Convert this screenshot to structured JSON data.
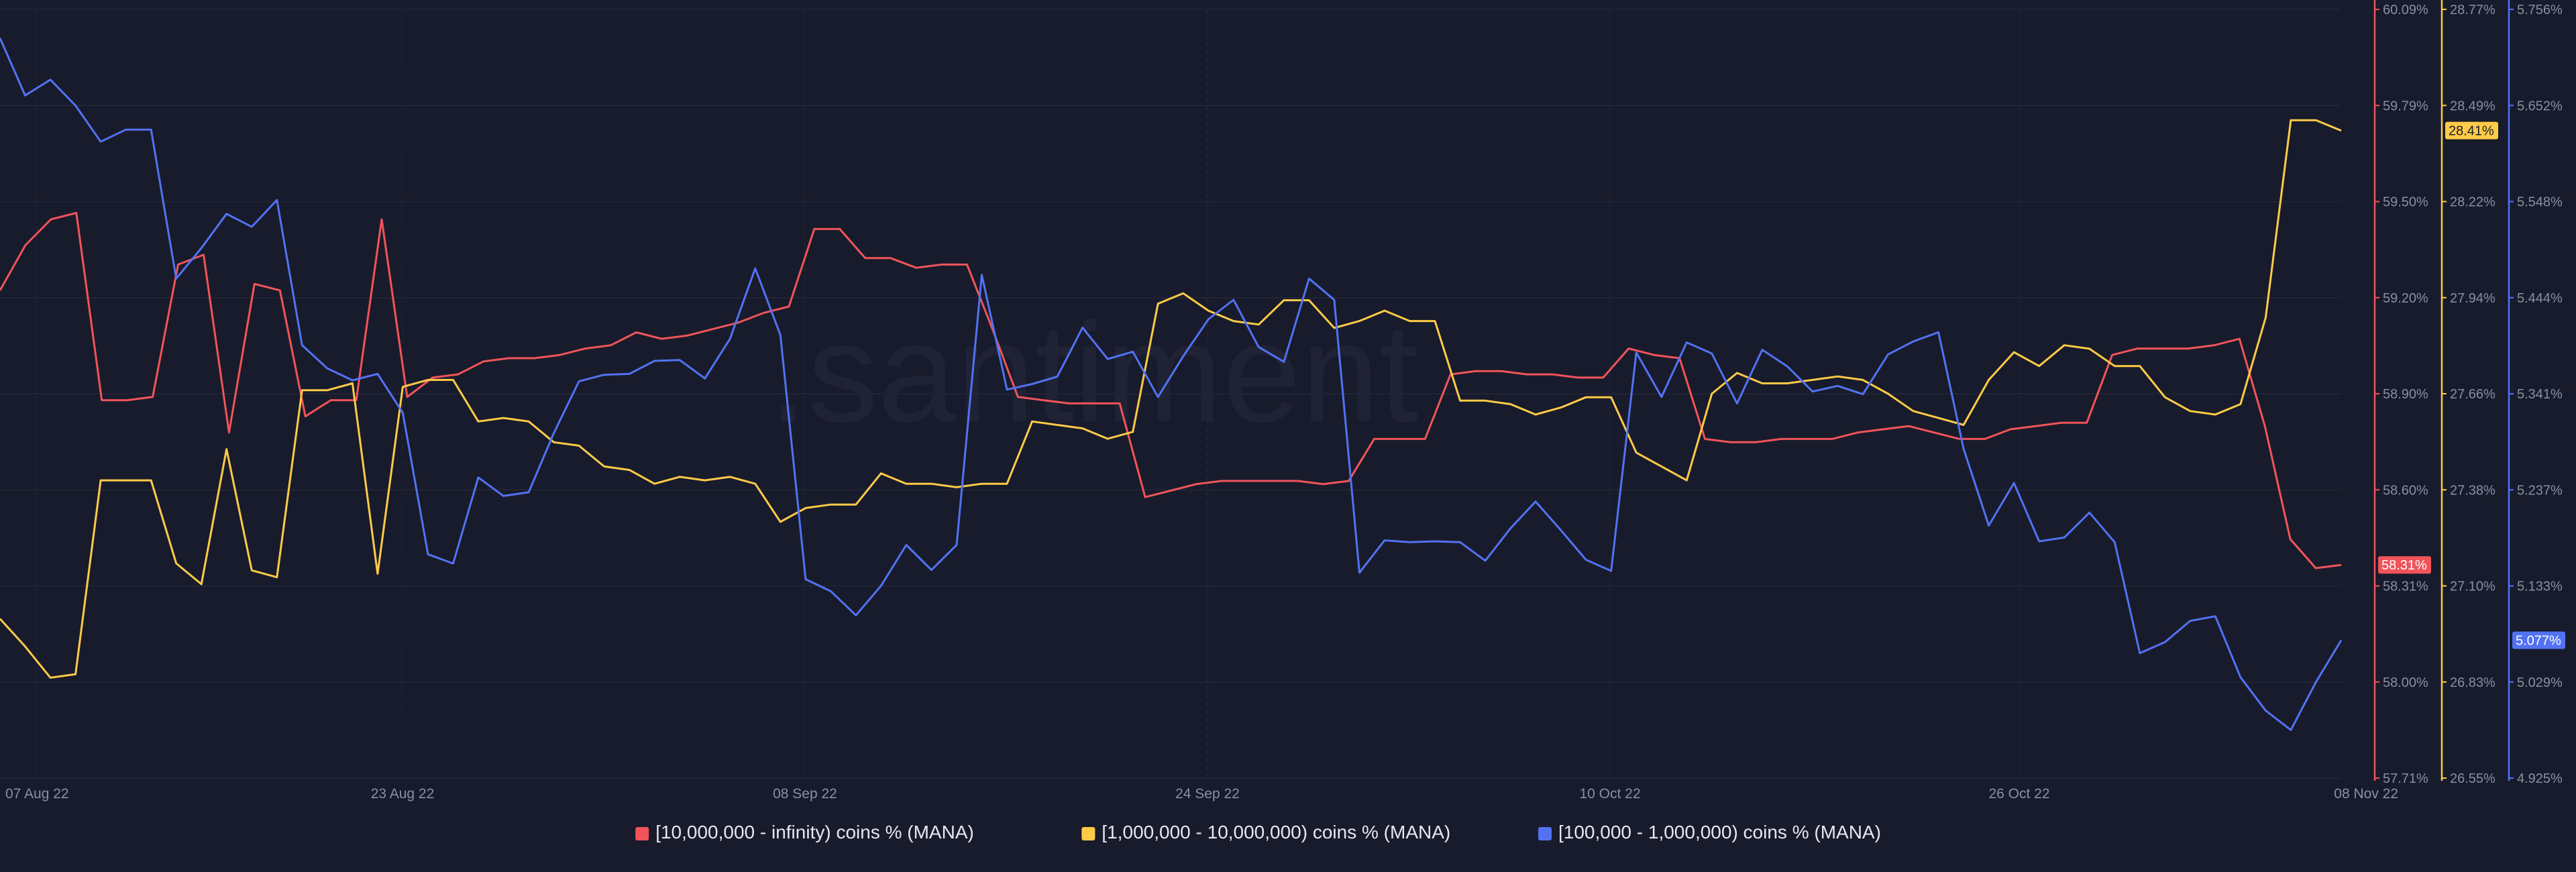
{
  "watermark": ".santiment",
  "colors": {
    "background": "#181b2b",
    "grid": "#232738",
    "axis_text": "#8a8fa3",
    "red": "#f0545a",
    "yellow": "#ffcb47",
    "blue": "#5272f3"
  },
  "chart_data": {
    "type": "line",
    "x_tick_labels": [
      "07 Aug 22",
      "23 Aug 22",
      "08 Sep 22",
      "24 Sep 22",
      "10 Oct 22",
      "26 Oct 22",
      "08 Nov 22"
    ],
    "legend_position": "bottom-center",
    "grid": true,
    "axes": {
      "red": {
        "range": [
          57.71,
          60.09
        ],
        "ticks": [
          "60.09%",
          "59.79%",
          "59.50%",
          "59.20%",
          "58.90%",
          "58.60%",
          "58.31%",
          "58.00%",
          "57.71%"
        ],
        "current_value_label": "58.31%"
      },
      "yellow": {
        "range": [
          26.55,
          28.77
        ],
        "ticks": [
          "28.77%",
          "28.49%",
          "28.22%",
          "27.94%",
          "27.66%",
          "27.38%",
          "27.10%",
          "26.83%",
          "26.55%"
        ],
        "current_value_label": "28.41%"
      },
      "blue": {
        "range": [
          4.925,
          5.756
        ],
        "ticks": [
          "5.756%",
          "5.652%",
          "5.548%",
          "5.444%",
          "5.341%",
          "5.237%",
          "5.133%",
          "5.029%",
          "4.925%"
        ],
        "current_value_label": "5.077%"
      }
    },
    "series": [
      {
        "name": "[10,000,000 - infinity) coins % (MANA)",
        "axis": "red",
        "color": "#f0545a",
        "values": [
          59.22,
          59.36,
          59.44,
          59.46,
          58.88,
          58.88,
          58.89,
          59.3,
          59.33,
          58.78,
          59.24,
          59.22,
          58.83,
          58.88,
          58.88,
          59.44,
          58.89,
          58.95,
          58.96,
          59.0,
          59.01,
          59.01,
          59.02,
          59.04,
          59.05,
          59.09,
          59.07,
          59.08,
          59.1,
          59.12,
          59.15,
          59.17,
          59.41,
          59.41,
          59.32,
          59.32,
          59.29,
          59.3,
          59.3,
          59.1,
          58.89,
          58.88,
          58.87,
          58.87,
          58.87,
          58.58,
          58.6,
          58.62,
          58.63,
          58.63,
          58.63,
          58.63,
          58.62,
          58.63,
          58.76,
          58.76,
          58.76,
          58.96,
          58.97,
          58.97,
          58.96,
          58.96,
          58.95,
          58.95,
          59.04,
          59.02,
          59.01,
          58.76,
          58.75,
          58.75,
          58.76,
          58.76,
          58.76,
          58.78,
          58.79,
          58.8,
          58.78,
          58.76,
          58.76,
          58.79,
          58.8,
          58.81,
          58.81,
          59.02,
          59.04,
          59.04,
          59.04,
          59.05,
          59.07,
          58.8,
          58.45,
          58.36,
          58.37
        ]
      },
      {
        "name": "[1,000,000 - 10,000,000) coins % (MANA)",
        "axis": "yellow",
        "color": "#ffcb47",
        "values": [
          27.01,
          26.93,
          26.84,
          26.85,
          27.41,
          27.41,
          27.41,
          27.17,
          27.11,
          27.5,
          27.15,
          27.13,
          27.67,
          27.67,
          27.69,
          27.14,
          27.68,
          27.7,
          27.7,
          27.58,
          27.59,
          27.58,
          27.52,
          27.51,
          27.45,
          27.44,
          27.4,
          27.42,
          27.41,
          27.42,
          27.4,
          27.29,
          27.33,
          27.34,
          27.34,
          27.43,
          27.4,
          27.4,
          27.39,
          27.4,
          27.4,
          27.58,
          27.57,
          27.56,
          27.53,
          27.55,
          27.92,
          27.95,
          27.9,
          27.87,
          27.86,
          27.93,
          27.93,
          27.85,
          27.87,
          27.9,
          27.87,
          27.87,
          27.64,
          27.64,
          27.63,
          27.6,
          27.62,
          27.65,
          27.65,
          27.49,
          27.45,
          27.41,
          27.66,
          27.72,
          27.69,
          27.69,
          27.7,
          27.71,
          27.7,
          27.66,
          27.61,
          27.59,
          27.57,
          27.7,
          27.78,
          27.74,
          27.8,
          27.79,
          27.74,
          27.74,
          27.65,
          27.61,
          27.6,
          27.63,
          27.88,
          28.45,
          28.45,
          28.42
        ]
      },
      {
        "name": "[100,000  - 1,000,000) coins % (MANA)",
        "axis": "blue",
        "color": "#5272f3",
        "values": [
          5.725,
          5.663,
          5.68,
          5.652,
          5.613,
          5.626,
          5.626,
          5.465,
          5.498,
          5.535,
          5.521,
          5.55,
          5.393,
          5.368,
          5.355,
          5.362,
          5.32,
          5.167,
          5.157,
          5.25,
          5.23,
          5.234,
          5.298,
          5.354,
          5.361,
          5.362,
          5.376,
          5.377,
          5.357,
          5.4,
          5.476,
          5.404,
          5.14,
          5.127,
          5.101,
          5.133,
          5.177,
          5.15,
          5.177,
          5.469,
          5.345,
          5.351,
          5.359,
          5.412,
          5.378,
          5.386,
          5.337,
          5.381,
          5.421,
          5.442,
          5.391,
          5.375,
          5.465,
          5.442,
          5.147,
          5.182,
          5.18,
          5.181,
          5.18,
          5.16,
          5.195,
          5.224,
          5.193,
          5.161,
          5.149,
          5.385,
          5.337,
          5.396,
          5.384,
          5.33,
          5.388,
          5.37,
          5.343,
          5.349,
          5.34,
          5.383,
          5.397,
          5.407,
          5.281,
          5.198,
          5.244,
          5.181,
          5.185,
          5.212,
          5.18,
          5.06,
          5.072,
          5.095,
          5.1,
          5.034,
          4.998,
          4.977,
          5.029,
          5.074
        ]
      }
    ]
  }
}
